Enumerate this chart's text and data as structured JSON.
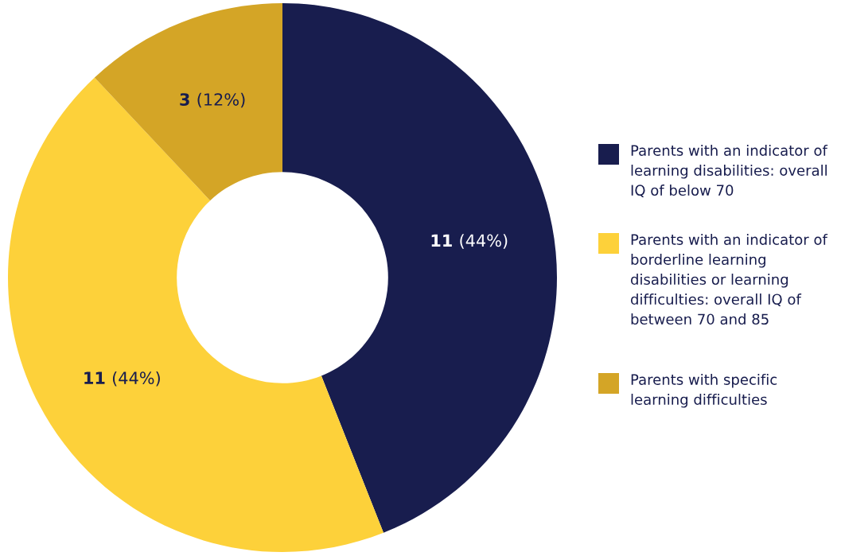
{
  "chart_data": {
    "type": "donut",
    "categories": [
      "Parents with an indicator of learning disabilities: overall IQ of below 70",
      "Parents with an indicator of borderline learning disabilities or learning difficulties: overall IQ of between 70 and 85",
      "Parents with specific learning difficulties"
    ],
    "values": [
      11,
      11,
      3
    ],
    "colors": [
      "#181d4e",
      "#fdd13a",
      "#d4a526"
    ],
    "value_labels": [
      "11 (44%)",
      "11 (44%)",
      "3 (12%)"
    ],
    "legend": "right"
  }
}
